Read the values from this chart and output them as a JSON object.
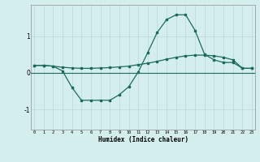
{
  "xlabel": "Humidex (Indice chaleur)",
  "background_color": "#d4eeee",
  "line_color": "#1a6b5a",
  "grid_color": "#b8d8d8",
  "x_values": [
    0,
    1,
    2,
    3,
    4,
    5,
    6,
    7,
    8,
    9,
    10,
    11,
    12,
    13,
    14,
    15,
    16,
    17,
    18,
    19,
    20,
    21,
    22,
    23
  ],
  "line1_y": [
    0.2,
    0.2,
    0.18,
    0.15,
    0.13,
    0.12,
    0.12,
    0.13,
    0.14,
    0.16,
    0.18,
    0.22,
    0.26,
    0.31,
    0.37,
    0.42,
    0.46,
    0.48,
    0.48,
    0.46,
    0.42,
    0.35,
    0.12,
    0.12
  ],
  "line2_y": [
    0.2,
    0.2,
    0.18,
    0.05,
    -0.4,
    -0.75,
    -0.75,
    -0.75,
    -0.75,
    -0.6,
    -0.38,
    0.02,
    0.55,
    1.1,
    1.45,
    1.58,
    1.58,
    1.15,
    0.5,
    0.35,
    0.28,
    0.28,
    0.12,
    0.12
  ],
  "ylim": [
    -1.55,
    1.85
  ],
  "yticks": [
    -1,
    0,
    1
  ],
  "xlim": [
    -0.3,
    23.3
  ]
}
